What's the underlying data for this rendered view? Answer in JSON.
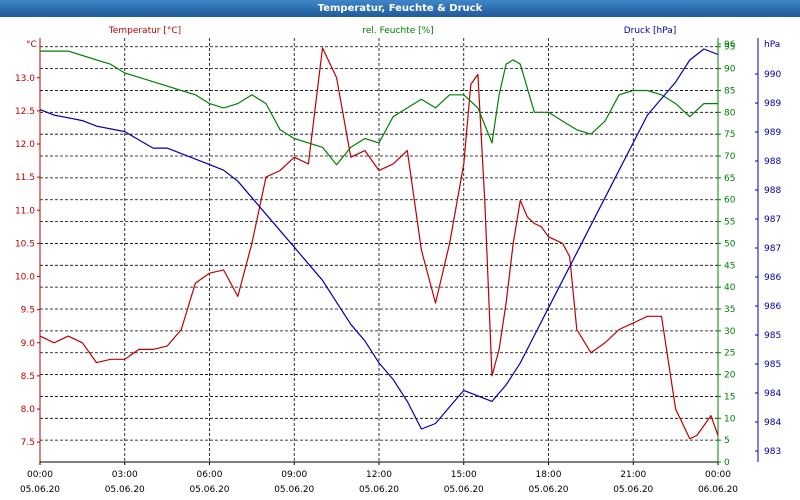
{
  "title": "Temperatur, Feuchte & Druck",
  "chart_data": {
    "type": "line",
    "x_ticks": [
      "00:00",
      "03:00",
      "06:00",
      "09:00",
      "12:00",
      "15:00",
      "18:00",
      "21:00",
      "00:00"
    ],
    "x_dates": [
      "05.06.20",
      "05.06.20",
      "05.06.20",
      "05.06.20",
      "05.06.20",
      "05.06.20",
      "05.06.20",
      "05.06.20",
      "06.06.20"
    ],
    "xlim": [
      0,
      24
    ],
    "colors": {
      "temperature": "#c00000",
      "humidity": "#008000",
      "pressure": "#0000b0",
      "title": "#2a6db5"
    },
    "axes": {
      "temperature": {
        "label": "Temperatur [°C]",
        "unit": "°C",
        "ylim": [
          7.2,
          13.6
        ],
        "ticks": [
          "7.5",
          "8.0",
          "8.5",
          "9.0",
          "9.5",
          "10.0",
          "10.5",
          "11.0",
          "11.5",
          "12.0",
          "12.5",
          "13.0"
        ]
      },
      "humidity": {
        "label": "rel. Feuchte [%]",
        "unit": "%",
        "ylim": [
          0,
          97
        ],
        "ticks": [
          "0",
          "5",
          "10",
          "15",
          "20",
          "25",
          "30",
          "35",
          "40",
          "45",
          "50",
          "55",
          "60",
          "65",
          "70",
          "75",
          "80",
          "85",
          "90",
          "95",
          "96"
        ]
      },
      "pressure": {
        "label": "Druck [hPa]",
        "unit": "hPa",
        "ylim": [
          982.9,
          990.6
        ],
        "ticks": [
          "983",
          "984",
          "984",
          "985",
          "985",
          "986",
          "986",
          "987",
          "987",
          "988",
          "988",
          "989",
          "989",
          "990"
        ]
      }
    },
    "series": [
      {
        "name": "Temperatur",
        "axis": "temperature",
        "x": [
          0,
          0.5,
          1,
          1.5,
          2,
          2.5,
          3,
          3.5,
          4,
          4.5,
          5,
          5.5,
          6,
          6.5,
          7,
          7.5,
          8,
          8.5,
          9,
          9.5,
          10,
          10.5,
          11,
          11.5,
          12,
          12.5,
          13,
          13.5,
          14,
          14.5,
          15,
          15.25,
          15.5,
          15.75,
          16,
          16.25,
          16.5,
          16.75,
          17,
          17.25,
          17.5,
          17.75,
          18,
          18.25,
          18.5,
          18.75,
          19,
          19.5,
          20,
          20.5,
          21,
          21.5,
          22,
          22.5,
          23,
          23.25,
          23.5,
          23.75,
          24
        ],
        "values": [
          9.1,
          9.0,
          9.1,
          9.0,
          8.7,
          8.75,
          8.75,
          8.9,
          8.9,
          8.95,
          9.2,
          9.9,
          10.05,
          10.1,
          9.7,
          10.5,
          11.5,
          11.6,
          11.8,
          11.7,
          13.45,
          13.0,
          11.8,
          11.9,
          11.6,
          11.7,
          11.9,
          10.4,
          9.6,
          10.5,
          11.7,
          12.9,
          13.05,
          11.1,
          8.5,
          8.9,
          9.6,
          10.5,
          11.15,
          10.9,
          10.8,
          10.75,
          10.6,
          10.55,
          10.5,
          10.3,
          9.2,
          8.85,
          9.0,
          9.2,
          9.3,
          9.4,
          9.4,
          8.0,
          7.55,
          7.6,
          7.75,
          7.9,
          7.6
        ]
      },
      {
        "name": "rel. Feuchte",
        "axis": "humidity",
        "x": [
          0,
          0.5,
          1,
          1.5,
          2,
          2.5,
          3,
          3.5,
          4,
          4.5,
          5,
          5.5,
          6,
          6.5,
          7,
          7.5,
          8,
          8.5,
          9,
          9.5,
          10,
          10.5,
          11,
          11.5,
          12,
          12.5,
          13,
          13.5,
          14,
          14.5,
          15,
          15.5,
          16,
          16.25,
          16.5,
          16.75,
          17,
          17.5,
          18,
          18.5,
          19,
          19.5,
          20,
          20.5,
          21,
          21.5,
          22,
          22.5,
          23,
          23.5,
          24
        ],
        "values": [
          94,
          94,
          94,
          93,
          92,
          91,
          89,
          88,
          87,
          86,
          85,
          84,
          82,
          81,
          82,
          84,
          82,
          76,
          74,
          73,
          72,
          68,
          72,
          74,
          73,
          79,
          81,
          83,
          81,
          84,
          84,
          81,
          73,
          84,
          91,
          92,
          91,
          80,
          80,
          78,
          76,
          75,
          78,
          84,
          85,
          85,
          84,
          82,
          79,
          82,
          82
        ]
      },
      {
        "name": "Druck",
        "axis": "pressure",
        "x": [
          0,
          0.5,
          1,
          1.5,
          2,
          2.5,
          3,
          3.5,
          4,
          4.5,
          5,
          5.5,
          6,
          6.5,
          7,
          7.5,
          8,
          8.5,
          9,
          9.5,
          10,
          10.5,
          11,
          11.5,
          12,
          12.5,
          13,
          13.5,
          14,
          14.5,
          15,
          15.5,
          16,
          16.5,
          17,
          17.5,
          18,
          18.5,
          19,
          19.5,
          20,
          20.5,
          21,
          21.5,
          22,
          22.5,
          23,
          23.5,
          24
        ],
        "values": [
          989.3,
          989.2,
          989.15,
          989.1,
          989.0,
          988.95,
          988.9,
          988.75,
          988.6,
          988.6,
          988.5,
          988.4,
          988.3,
          988.2,
          988.0,
          987.7,
          987.4,
          987.1,
          986.8,
          986.5,
          986.2,
          985.8,
          985.4,
          985.1,
          984.7,
          984.4,
          984.0,
          983.5,
          983.6,
          983.9,
          984.2,
          984.1,
          984.0,
          984.3,
          984.7,
          985.2,
          985.7,
          986.2,
          986.7,
          987.2,
          987.7,
          988.2,
          988.7,
          989.2,
          989.5,
          989.8,
          990.2,
          990.4,
          990.3
        ]
      }
    ]
  }
}
